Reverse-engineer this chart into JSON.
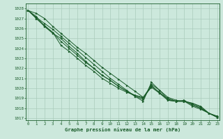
{
  "title": "Graphe pression niveau de la mer (hPa)",
  "background_color": "#cce8dc",
  "plot_bg_color": "#cce8dc",
  "grid_color": "#aaccbb",
  "line_color": "#1a5c2a",
  "marker_color": "#1a5c2a",
  "xlim": [
    -0.3,
    23.3
  ],
  "ylim": [
    1016.8,
    1028.5
  ],
  "yticks": [
    1017,
    1018,
    1019,
    1020,
    1021,
    1022,
    1023,
    1024,
    1025,
    1026,
    1027,
    1028
  ],
  "xticks": [
    0,
    1,
    2,
    3,
    4,
    5,
    6,
    7,
    8,
    9,
    10,
    11,
    12,
    13,
    14,
    15,
    16,
    17,
    18,
    19,
    20,
    21,
    22,
    23
  ],
  "series": [
    [
      1027.8,
      1027.5,
      1027.0,
      1026.2,
      1025.5,
      1024.8,
      1024.1,
      1023.5,
      1022.8,
      1022.1,
      1021.5,
      1020.9,
      1020.3,
      1019.7,
      1019.1,
      1020.3,
      1019.5,
      1018.8,
      1018.7,
      1018.8,
      1018.3,
      1018.0,
      1017.5,
      1017.2
    ],
    [
      1027.8,
      1027.1,
      1026.5,
      1025.9,
      1025.2,
      1024.5,
      1023.8,
      1023.1,
      1022.4,
      1021.7,
      1021.0,
      1020.4,
      1019.8,
      1019.2,
      1018.7,
      1020.6,
      1019.8,
      1019.1,
      1018.8,
      1018.7,
      1018.2,
      1017.9,
      1017.5,
      1017.2
    ],
    [
      1027.8,
      1027.2,
      1026.2,
      1025.6,
      1024.7,
      1024.0,
      1023.3,
      1022.6,
      1022.0,
      1021.3,
      1020.8,
      1020.2,
      1019.7,
      1019.2,
      1018.9,
      1020.4,
      1019.8,
      1018.9,
      1018.7,
      1018.7,
      1018.5,
      1018.1,
      1017.5,
      1017.1
    ],
    [
      1027.8,
      1027.0,
      1026.3,
      1025.6,
      1024.3,
      1023.7,
      1023.0,
      1022.3,
      1021.7,
      1021.0,
      1020.5,
      1020.0,
      1019.6,
      1019.3,
      1019.1,
      1020.1,
      1019.5,
      1019.0,
      1018.7,
      1018.7,
      1018.5,
      1018.2,
      1017.5,
      1017.1
    ],
    [
      1027.8,
      1027.0,
      1026.2,
      1025.5,
      1025.0,
      1024.2,
      1023.5,
      1022.7,
      1022.0,
      1021.3,
      1020.8,
      1020.2,
      1019.7,
      1019.3,
      1019.0,
      1020.2,
      1019.6,
      1018.8,
      1018.7,
      1018.7,
      1018.4,
      1018.0,
      1017.5,
      1017.1
    ]
  ]
}
